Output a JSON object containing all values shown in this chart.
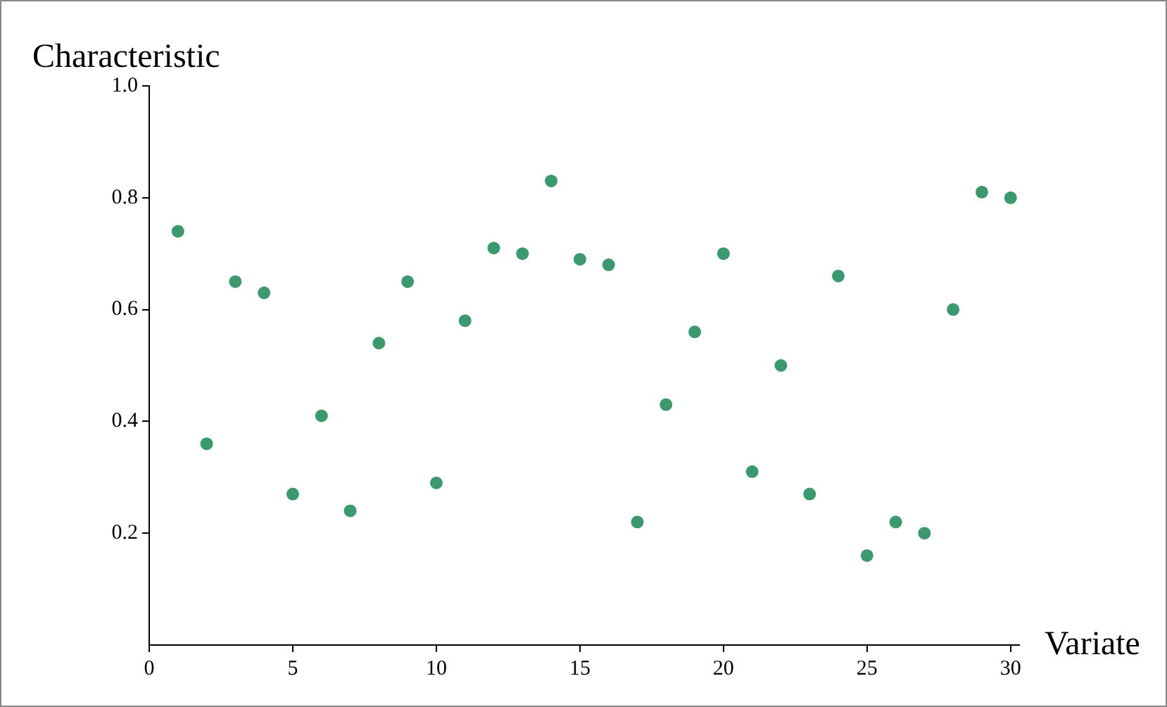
{
  "chart_data": {
    "type": "scatter",
    "xlabel": "Variate",
    "ylabel": "Characteristic",
    "x": [
      1,
      2,
      3,
      4,
      5,
      6,
      7,
      8,
      9,
      10,
      11,
      12,
      13,
      14,
      15,
      16,
      17,
      18,
      19,
      20,
      21,
      22,
      23,
      24,
      25,
      26,
      27,
      28,
      29,
      30
    ],
    "series": [
      {
        "color": "#3a9a6e",
        "values": [
          0.74,
          0.36,
          0.65,
          0.63,
          0.27,
          0.41,
          0.24,
          0.54,
          0.65,
          0.29,
          0.58,
          0.71,
          0.7,
          0.83,
          0.69,
          0.68,
          0.22,
          0.43,
          0.56,
          0.7,
          0.31,
          0.5,
          0.27,
          0.66,
          0.16,
          0.22,
          0.2,
          0.6,
          0.81,
          0.8
        ]
      }
    ],
    "xlim": [
      0,
      30.3
    ],
    "ylim": [
      0,
      1
    ],
    "xticks": [
      0,
      5,
      10,
      15,
      20,
      25,
      30
    ],
    "yticks": [
      0.2,
      0.4,
      0.6,
      0.8,
      {
        "value": 1,
        "label": "1.0"
      }
    ],
    "marker": "circle",
    "grid": false,
    "legend": false
  }
}
